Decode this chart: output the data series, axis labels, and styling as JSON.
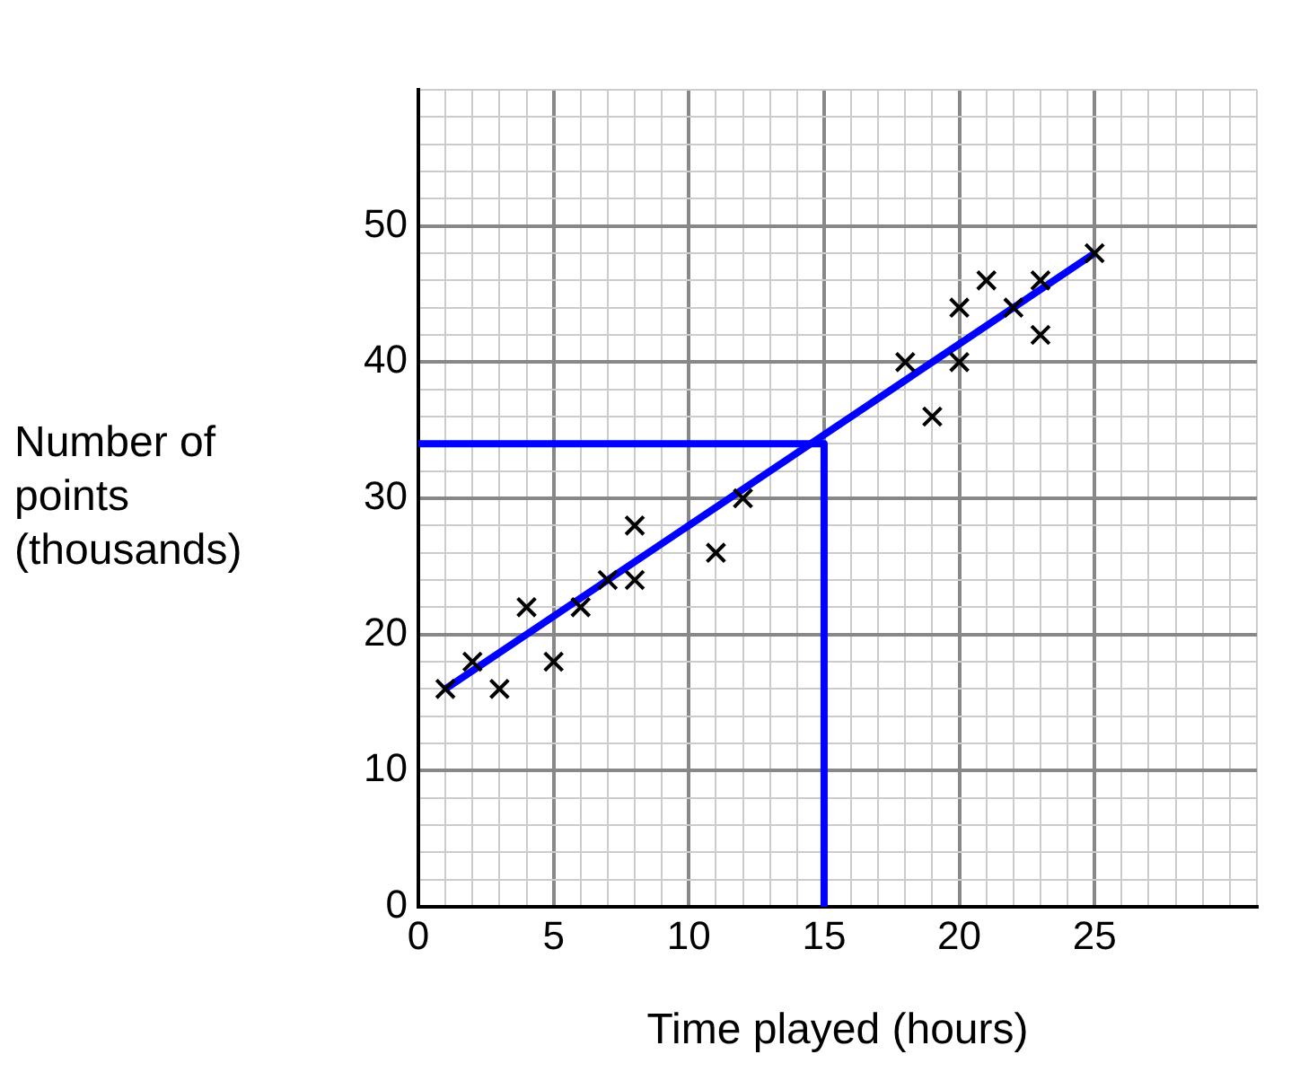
{
  "chart_data": {
    "type": "scatter",
    "xlabel": "Time played (hours)",
    "ylabel": "Number of points (thousands)",
    "xlim": [
      0,
      31
    ],
    "ylim": [
      0,
      60
    ],
    "grid": true,
    "marker": "cross",
    "xticks": [
      0,
      {
        "value": 1,
        "label": null
      },
      {
        "value": 2,
        "label": null
      },
      {
        "value": 3,
        "label": null
      },
      {
        "value": 4,
        "label": null
      },
      5,
      {
        "value": 6,
        "label": null
      },
      {
        "value": 7,
        "label": null
      },
      {
        "value": 8,
        "label": null
      },
      {
        "value": 9,
        "label": null
      },
      10,
      {
        "value": 11,
        "label": null
      },
      {
        "value": 12,
        "label": null
      },
      {
        "value": 13,
        "label": null
      },
      {
        "value": 14,
        "label": null
      },
      15,
      {
        "value": 16,
        "label": null
      },
      {
        "value": 17,
        "label": null
      },
      {
        "value": 18,
        "label": null
      },
      {
        "value": 19,
        "label": null
      },
      20,
      {
        "value": 21,
        "label": null
      },
      {
        "value": 22,
        "label": null
      },
      {
        "value": 23,
        "label": null
      },
      {
        "value": 24,
        "label": null
      },
      25,
      {
        "value": 26,
        "label": null
      },
      {
        "value": 27,
        "label": null
      },
      {
        "value": 28,
        "label": null
      },
      {
        "value": 29,
        "label": null
      },
      {
        "value": 30,
        "label": null
      },
      {
        "value": 31,
        "label": null
      }
    ],
    "yticks": [
      0,
      {
        "value": 2,
        "label": null
      },
      {
        "value": 4,
        "label": null
      },
      {
        "value": 6,
        "label": null
      },
      {
        "value": 8,
        "label": null
      },
      10,
      {
        "value": 12,
        "label": null
      },
      {
        "value": 14,
        "label": null
      },
      {
        "value": 16,
        "label": null
      },
      {
        "value": 18,
        "label": null
      },
      20,
      {
        "value": 22,
        "label": null
      },
      {
        "value": 24,
        "label": null
      },
      {
        "value": 26,
        "label": null
      },
      {
        "value": 28,
        "label": null
      },
      30,
      {
        "value": 32,
        "label": null
      },
      {
        "value": 34,
        "label": null
      },
      {
        "value": 36,
        "label": null
      },
      {
        "value": 38,
        "label": null
      },
      40,
      {
        "value": 42,
        "label": null
      },
      {
        "value": 44,
        "label": null
      },
      {
        "value": 46,
        "label": null
      },
      {
        "value": 48,
        "label": null
      },
      50,
      {
        "value": 52,
        "label": null
      },
      {
        "value": 54,
        "label": null
      },
      {
        "value": 56,
        "label": null
      },
      {
        "value": 58,
        "label": null
      },
      {
        "value": 60,
        "label": null
      }
    ],
    "series": [
      {
        "type": "scatter",
        "color": "#000000",
        "x": [
          1,
          2,
          3,
          4,
          5,
          6,
          7,
          8,
          8,
          11,
          12,
          18,
          19,
          20,
          20,
          21,
          22,
          23,
          23,
          25
        ],
        "values": [
          16,
          18,
          16,
          22,
          18,
          22,
          24,
          24,
          28,
          26,
          30,
          40,
          36,
          40,
          44,
          46,
          44,
          46,
          42,
          48
        ]
      },
      {
        "type": "line",
        "color": "#0000ff",
        "marker": "none",
        "x": [
          1,
          25
        ],
        "values": [
          16,
          48
        ]
      },
      {
        "type": "line",
        "color": "#0000ff",
        "marker": "none",
        "x": [
          0,
          15,
          15
        ],
        "values": [
          34,
          34,
          0
        ]
      }
    ]
  }
}
